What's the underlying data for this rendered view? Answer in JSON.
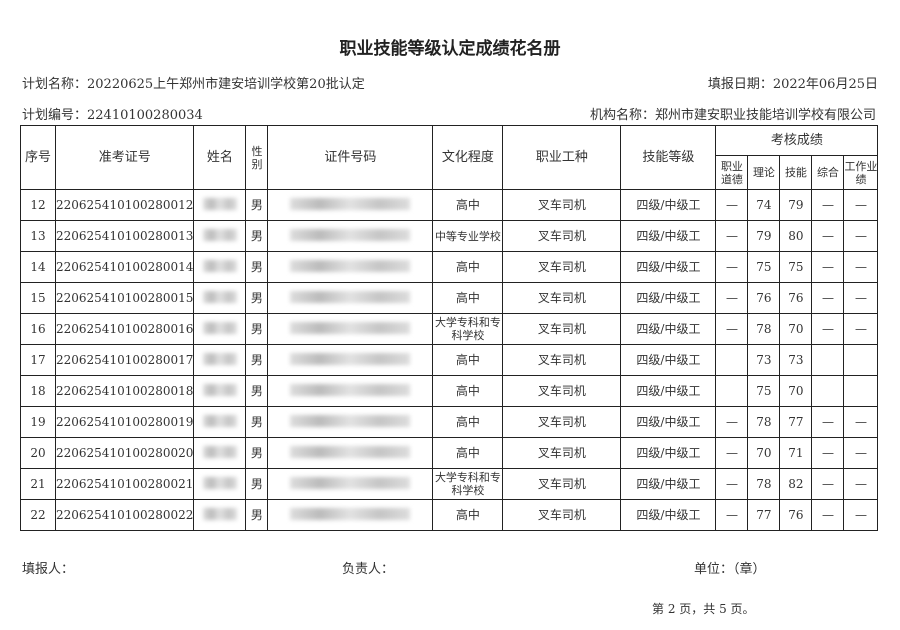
{
  "title": "职业技能等级认定成绩花名册",
  "plan_name": "计划名称：20220625上午郑州市建安培训学校第20批认定",
  "fill_date": "填报日期：2022年06月25日",
  "plan_no": "计划编号：22410100280034",
  "org_name": "机构名称：郑州市建安职业技能培训学校有限公司",
  "headers": {
    "seq": "序号",
    "ticket": "准考证号",
    "name": "姓名",
    "gender": "性别",
    "id": "证件号码",
    "edu": "文化程度",
    "job": "职业工种",
    "level": "技能等级",
    "scores": "考核成绩",
    "ethics": "职业道德",
    "theory": "理论",
    "skill": "技能",
    "overall": "综合",
    "work": "工作业绩"
  },
  "rows": [
    {
      "seq": "12",
      "ticket": "220625410100280012",
      "gender": "男",
      "edu": "高中",
      "job": "叉车司机",
      "level": "四级/中级工",
      "ethics": "—",
      "theory": "74",
      "skill": "79",
      "overall": "—",
      "work": "—"
    },
    {
      "seq": "13",
      "ticket": "220625410100280013",
      "gender": "男",
      "edu": "中等专业学校",
      "job": "叉车司机",
      "level": "四级/中级工",
      "ethics": "—",
      "theory": "79",
      "skill": "80",
      "overall": "—",
      "work": "—"
    },
    {
      "seq": "14",
      "ticket": "220625410100280014",
      "gender": "男",
      "edu": "高中",
      "job": "叉车司机",
      "level": "四级/中级工",
      "ethics": "—",
      "theory": "75",
      "skill": "75",
      "overall": "—",
      "work": "—"
    },
    {
      "seq": "15",
      "ticket": "220625410100280015",
      "gender": "男",
      "edu": "高中",
      "job": "叉车司机",
      "level": "四级/中级工",
      "ethics": "—",
      "theory": "76",
      "skill": "76",
      "overall": "—",
      "work": "—"
    },
    {
      "seq": "16",
      "ticket": "220625410100280016",
      "gender": "男",
      "edu": "大学专科和专科学校",
      "job": "叉车司机",
      "level": "四级/中级工",
      "ethics": "—",
      "theory": "78",
      "skill": "70",
      "overall": "—",
      "work": "—"
    },
    {
      "seq": "17",
      "ticket": "220625410100280017",
      "gender": "男",
      "edu": "高中",
      "job": "叉车司机",
      "level": "四级/中级工",
      "ethics": "",
      "theory": "73",
      "skill": "73",
      "overall": "",
      "work": ""
    },
    {
      "seq": "18",
      "ticket": "220625410100280018",
      "gender": "男",
      "edu": "高中",
      "job": "叉车司机",
      "level": "四级/中级工",
      "ethics": "",
      "theory": "75",
      "skill": "70",
      "overall": "",
      "work": ""
    },
    {
      "seq": "19",
      "ticket": "220625410100280019",
      "gender": "男",
      "edu": "高中",
      "job": "叉车司机",
      "level": "四级/中级工",
      "ethics": "—",
      "theory": "78",
      "skill": "77",
      "overall": "—",
      "work": "—"
    },
    {
      "seq": "20",
      "ticket": "220625410100280020",
      "gender": "男",
      "edu": "高中",
      "job": "叉车司机",
      "level": "四级/中级工",
      "ethics": "—",
      "theory": "70",
      "skill": "71",
      "overall": "—",
      "work": "—"
    },
    {
      "seq": "21",
      "ticket": "220625410100280021",
      "gender": "男",
      "edu": "大学专科和专科学校",
      "job": "叉车司机",
      "level": "四级/中级工",
      "ethics": "—",
      "theory": "78",
      "skill": "82",
      "overall": "—",
      "work": "—"
    },
    {
      "seq": "22",
      "ticket": "220625410100280022",
      "gender": "男",
      "edu": "高中",
      "job": "叉车司机",
      "level": "四级/中级工",
      "ethics": "—",
      "theory": "77",
      "skill": "76",
      "overall": "—",
      "work": "—"
    }
  ],
  "footer": {
    "filler": "填报人：",
    "manager": "负责人：",
    "unit": "单位：（章）",
    "page": "第 2 页，共 5 页。"
  }
}
